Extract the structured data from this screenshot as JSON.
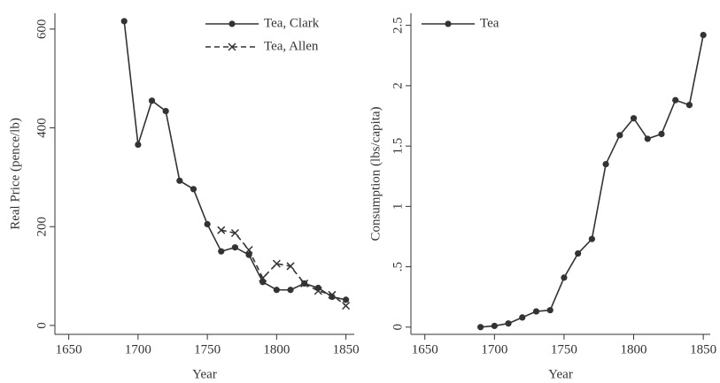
{
  "chart_data": [
    {
      "type": "line",
      "y_label": "Real Price (pence/lb)",
      "x_label": "Year",
      "x": [
        1690,
        1700,
        1710,
        1720,
        1730,
        1740,
        1750,
        1760,
        1770,
        1780,
        1790,
        1800,
        1810,
        1820,
        1830,
        1840,
        1850
      ],
      "series": [
        {
          "name": "Tea, Clark",
          "color": "#333333",
          "marker": "circle",
          "linestyle": "solid",
          "values": [
            616,
            366,
            455,
            434,
            293,
            276,
            205,
            150,
            158,
            143,
            88,
            72,
            72,
            85,
            76,
            58,
            52
          ]
        },
        {
          "name": "Tea, Allen",
          "color": "#333333",
          "marker": "x",
          "linestyle": "dashed",
          "values": [
            null,
            null,
            null,
            null,
            null,
            null,
            null,
            193,
            187,
            153,
            96,
            125,
            120,
            85,
            70,
            62,
            40
          ]
        }
      ],
      "xlim": [
        1640,
        1856
      ],
      "xticks": [
        1650,
        1700,
        1750,
        1800,
        1850
      ],
      "ylim": [
        -18,
        632
      ],
      "yticks": [
        0,
        200,
        400,
        600
      ],
      "legend": "top-right"
    },
    {
      "type": "line",
      "y_label": "Consumption (lbs/capita)",
      "x_label": "Year",
      "x": [
        1690,
        1700,
        1710,
        1720,
        1730,
        1740,
        1750,
        1760,
        1770,
        1780,
        1790,
        1800,
        1810,
        1820,
        1830,
        1840,
        1850
      ],
      "series": [
        {
          "name": "Tea",
          "color": "#333333",
          "marker": "circle",
          "linestyle": "solid",
          "values": [
            0,
            0.01,
            0.03,
            0.08,
            0.13,
            0.14,
            0.41,
            0.61,
            0.73,
            1.35,
            1.59,
            1.73,
            1.56,
            1.6,
            1.88,
            1.84,
            2.42
          ]
        }
      ],
      "xlim": [
        1640,
        1855
      ],
      "xticks": [
        1650,
        1700,
        1750,
        1800,
        1850
      ],
      "ylim": [
        -0.06,
        2.6
      ],
      "yticks": [
        0,
        {
          "value": 0.5,
          "label": ".5"
        },
        1,
        1.5,
        2,
        2.5
      ],
      "legend": "top-left"
    }
  ]
}
